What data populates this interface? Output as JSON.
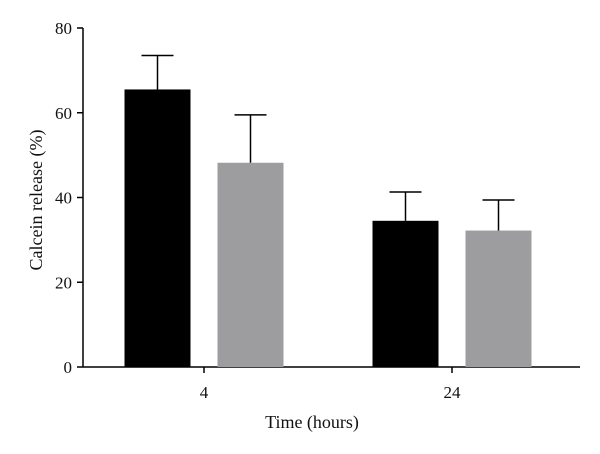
{
  "chart_data": {
    "type": "bar",
    "title": "",
    "xlabel": "Time (hours)",
    "ylabel": "Calcein release (%)",
    "categories": [
      "4",
      "24"
    ],
    "ylim": [
      0,
      80
    ],
    "yticks": [
      0,
      20,
      40,
      60,
      80
    ],
    "grid": false,
    "legend": "none",
    "series": [
      {
        "color": "#000000",
        "values": [
          65.5,
          34.5
        ],
        "errors": [
          8.0,
          6.8
        ]
      },
      {
        "color": "#9d9d9f",
        "values": [
          48.2,
          32.2
        ],
        "errors": [
          11.3,
          7.2
        ]
      }
    ]
  }
}
